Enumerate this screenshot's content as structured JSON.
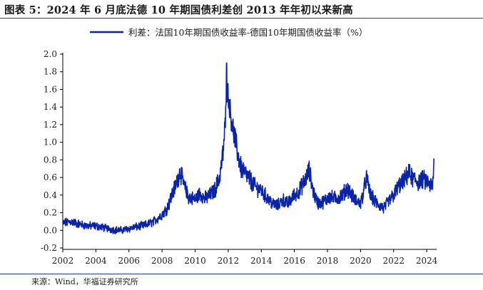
{
  "header": {
    "title": "图表 5：2024 年 6 月底法德 10 年期国债利差创 2013 年年初以来新高"
  },
  "footer": {
    "source": "来源：Wind，华福证券研究所"
  },
  "chart_data": {
    "type": "line",
    "title": "",
    "xlabel": "",
    "ylabel": "",
    "xlim": [
      2002.0,
      2024.5
    ],
    "ylim": [
      -0.2,
      2.0
    ],
    "x_ticks": [
      "2002",
      "2004",
      "2006",
      "2008",
      "2010",
      "2012",
      "2014",
      "2016",
      "2018",
      "2020",
      "2022",
      "2024"
    ],
    "y_ticks": [
      "2.0",
      "1.8",
      "1.6",
      "1.4",
      "1.2",
      "1.0",
      "0.8",
      "0.6",
      "0.4",
      "0.2",
      "0.0",
      "-0.2"
    ],
    "legend_position": "top-center",
    "grid": false,
    "series": [
      {
        "name": "利差：法国10年期国债收益率-德国10年期国债收益率（%）",
        "color": "#0a24a8",
        "x": [
          2002.0,
          2002.5,
          2003.0,
          2003.5,
          2004.0,
          2004.5,
          2005.0,
          2005.5,
          2006.0,
          2006.5,
          2007.0,
          2007.5,
          2008.0,
          2008.3,
          2008.6,
          2008.9,
          2009.1,
          2009.3,
          2009.6,
          2010.0,
          2010.3,
          2010.6,
          2010.9,
          2011.2,
          2011.5,
          2011.7,
          2011.85,
          2011.95,
          2012.05,
          2012.2,
          2012.4,
          2012.6,
          2012.8,
          2013.0,
          2013.3,
          2013.6,
          2014.0,
          2014.3,
          2014.7,
          2015.0,
          2015.3,
          2015.6,
          2016.0,
          2016.3,
          2016.6,
          2016.9,
          2017.1,
          2017.3,
          2017.5,
          2017.8,
          2018.1,
          2018.5,
          2018.9,
          2019.2,
          2019.6,
          2020.0,
          2020.2,
          2020.35,
          2020.6,
          2021.0,
          2021.4,
          2021.8,
          2022.0,
          2022.3,
          2022.6,
          2022.9,
          2023.2,
          2023.5,
          2023.8,
          2024.0,
          2024.2,
          2024.35,
          2024.45
        ],
        "values": [
          0.08,
          0.1,
          0.07,
          0.05,
          0.05,
          0.03,
          0.01,
          0.0,
          0.02,
          0.04,
          0.06,
          0.1,
          0.18,
          0.25,
          0.4,
          0.55,
          0.68,
          0.52,
          0.38,
          0.35,
          0.42,
          0.36,
          0.4,
          0.46,
          0.62,
          0.9,
          1.3,
          1.62,
          1.45,
          1.25,
          1.05,
          0.85,
          0.7,
          0.65,
          0.58,
          0.5,
          0.45,
          0.38,
          0.3,
          0.28,
          0.35,
          0.3,
          0.4,
          0.45,
          0.55,
          0.68,
          0.48,
          0.35,
          0.3,
          0.33,
          0.38,
          0.36,
          0.4,
          0.48,
          0.36,
          0.3,
          0.45,
          0.6,
          0.4,
          0.3,
          0.25,
          0.35,
          0.4,
          0.5,
          0.55,
          0.65,
          0.58,
          0.55,
          0.58,
          0.55,
          0.52,
          0.48,
          0.8
        ]
      }
    ]
  }
}
